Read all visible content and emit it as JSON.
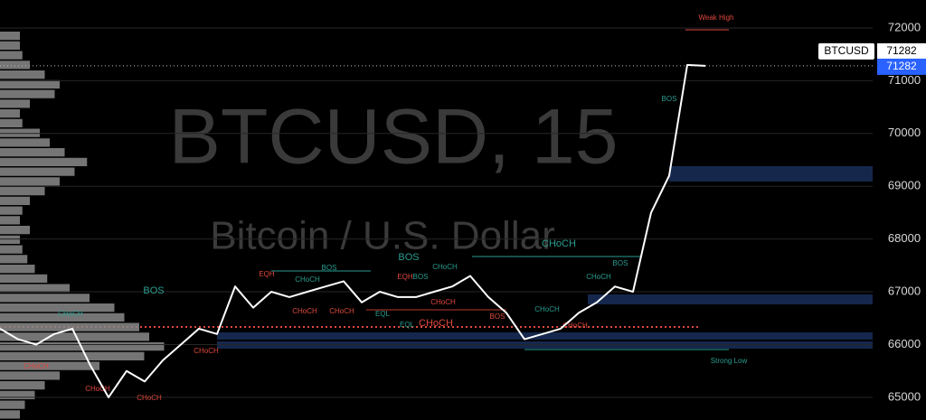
{
  "chart_data": {
    "type": "line",
    "symbol": "BTCUSD",
    "watermark_title": "BTCUSD, 15",
    "watermark_subtitle": "Bitcoin / U.S. Dollar",
    "series": [
      {
        "name": "BTCUSD",
        "color": "#ffffff",
        "values": [
          66300,
          66100,
          66000,
          66200,
          66300,
          65600,
          65000,
          65500,
          65300,
          65700,
          66000,
          66300,
          66200,
          67100,
          66700,
          67000,
          66900,
          67000,
          67100,
          67200,
          66800,
          67000,
          66900,
          66900,
          67000,
          67100,
          67300,
          66900,
          66600,
          66100,
          66200,
          66300,
          66600,
          66800,
          67100,
          67000,
          68500,
          69200,
          71300,
          71282
        ]
      }
    ],
    "last_price": 71282,
    "ylim": [
      64570,
      72530
    ],
    "yticks": [
      65000,
      66000,
      67000,
      68000,
      69000,
      70000,
      71000,
      72000
    ],
    "volume_profile": [
      40,
      40,
      45,
      60,
      90,
      120,
      110,
      60,
      40,
      45,
      80,
      100,
      130,
      175,
      150,
      120,
      90,
      60,
      45,
      40,
      60,
      40,
      45,
      55,
      70,
      95,
      140,
      180,
      230,
      250,
      280,
      300,
      330,
      290,
      200,
      120,
      90,
      70,
      50,
      40
    ],
    "annotations": [
      "Weak High",
      "Strong Low",
      "BOS",
      "CHoCH",
      "BOS",
      "CHoCH",
      "CHoCH",
      "EQH",
      "EQH",
      "BOS",
      "BOS",
      "CHoCH",
      "BOS",
      "CHoCH",
      "CHoCH",
      "CHoCH",
      "CHoCH",
      "EQL",
      "EQL",
      "BOS",
      "CHoCH",
      "CHoCH",
      "CHoCH",
      "CHoCH",
      "CHoCH",
      "BOS",
      "CHoCH",
      "CHoCH"
    ]
  }
}
